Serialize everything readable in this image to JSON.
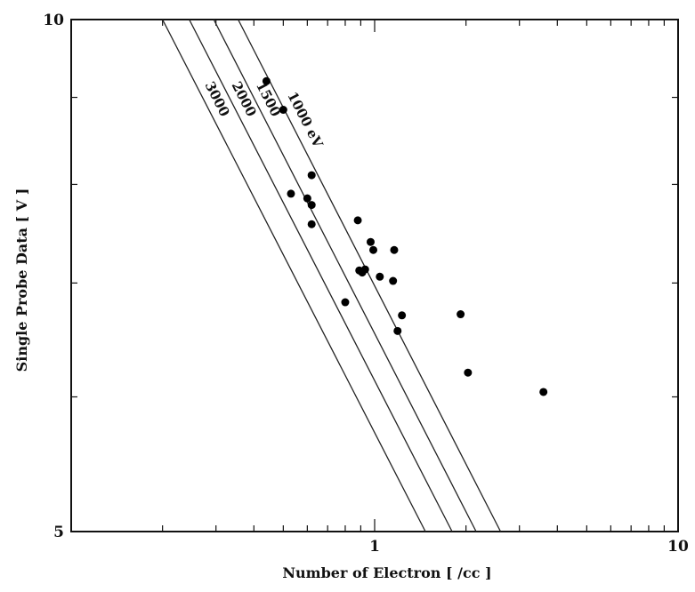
{
  "chart_data": {
    "type": "scatter",
    "title": "",
    "xlabel": "Number of Electron  [ /cc ]",
    "ylabel": "Single Probe Data  [ V ]",
    "x_scale": "log",
    "y_scale": "log",
    "xlim": [
      0.1,
      10
    ],
    "ylim": [
      5,
      10
    ],
    "x_tick_labels": [
      {
        "value": 1,
        "label": "1"
      },
      {
        "value": 10,
        "label": "10"
      }
    ],
    "y_tick_labels": [
      {
        "value": 5,
        "label": "5"
      },
      {
        "value": 10,
        "label": "10"
      }
    ],
    "grid": false,
    "lines": [
      {
        "name": "1000 eV",
        "label": "1000 eV",
        "y_at_ymax": 10,
        "x_at_ymax": 0.355,
        "x_at_ymin": 2.6
      },
      {
        "name": "1500",
        "label": "1500",
        "x_at_ymax": 0.295,
        "x_at_ymin": 2.16
      },
      {
        "name": "2000",
        "label": "2000",
        "x_at_ymax": 0.245,
        "x_at_ymin": 1.8
      },
      {
        "name": "3000",
        "label": "3000",
        "x_at_ymax": 0.2,
        "x_at_ymin": 1.47
      }
    ],
    "points": [
      {
        "x": 0.44,
        "y": 9.2
      },
      {
        "x": 0.5,
        "y": 8.85
      },
      {
        "x": 0.62,
        "y": 8.1
      },
      {
        "x": 0.53,
        "y": 7.9
      },
      {
        "x": 0.6,
        "y": 7.85
      },
      {
        "x": 0.62,
        "y": 7.78
      },
      {
        "x": 0.62,
        "y": 7.58
      },
      {
        "x": 0.88,
        "y": 7.62
      },
      {
        "x": 0.97,
        "y": 7.4
      },
      {
        "x": 0.99,
        "y": 7.32
      },
      {
        "x": 1.16,
        "y": 7.32
      },
      {
        "x": 0.89,
        "y": 7.12
      },
      {
        "x": 0.91,
        "y": 7.1
      },
      {
        "x": 0.93,
        "y": 7.13
      },
      {
        "x": 1.04,
        "y": 7.06
      },
      {
        "x": 1.15,
        "y": 7.02
      },
      {
        "x": 0.8,
        "y": 6.82
      },
      {
        "x": 1.23,
        "y": 6.7
      },
      {
        "x": 1.19,
        "y": 6.56
      },
      {
        "x": 1.92,
        "y": 6.71
      },
      {
        "x": 2.03,
        "y": 6.2
      },
      {
        "x": 3.6,
        "y": 6.04
      }
    ]
  }
}
